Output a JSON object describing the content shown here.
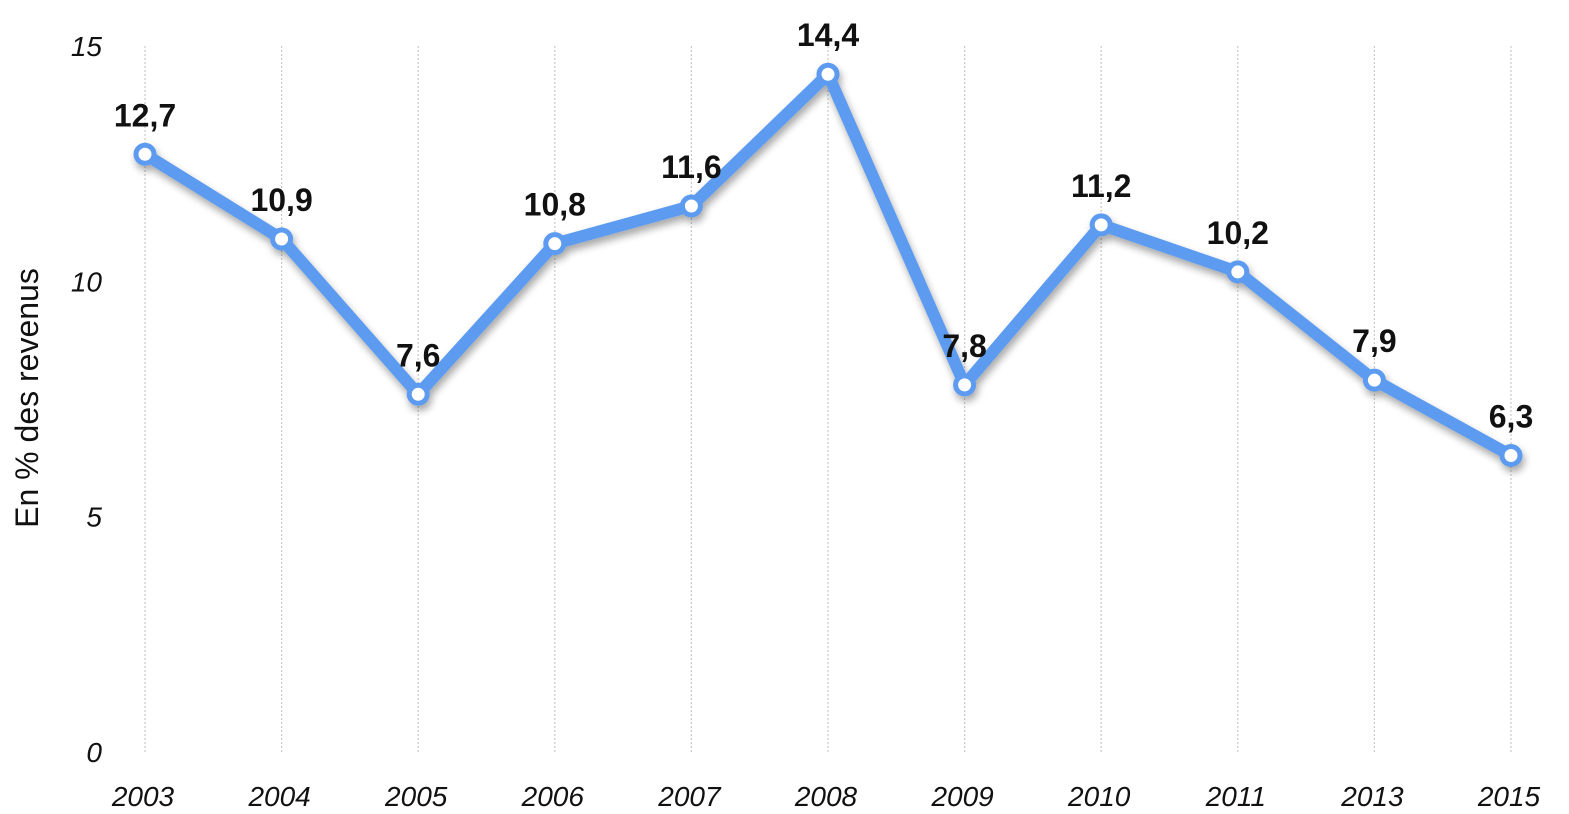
{
  "chart_data": {
    "type": "line",
    "title": "",
    "xlabel": "",
    "ylabel": "En % des revenus",
    "categories": [
      "2003",
      "2004",
      "2005",
      "2006",
      "2007",
      "2008",
      "2009",
      "2010",
      "2011",
      "2013",
      "2015"
    ],
    "series": [
      {
        "values": [
          12.7,
          10.9,
          7.6,
          10.8,
          11.6,
          14.4,
          7.8,
          11.2,
          10.2,
          7.9,
          6.3
        ],
        "labels": [
          "12,7",
          "10,9",
          "7,6",
          "10,8",
          "11,6",
          "14,4",
          "7,8",
          "11,2",
          "10,2",
          "7,9",
          "6,3"
        ],
        "color": "#5b9bef"
      }
    ],
    "ylim": [
      0,
      15
    ],
    "yticks": [
      "0",
      "5",
      "10",
      "15"
    ],
    "grid": "vertical dotted",
    "legend": "none"
  }
}
